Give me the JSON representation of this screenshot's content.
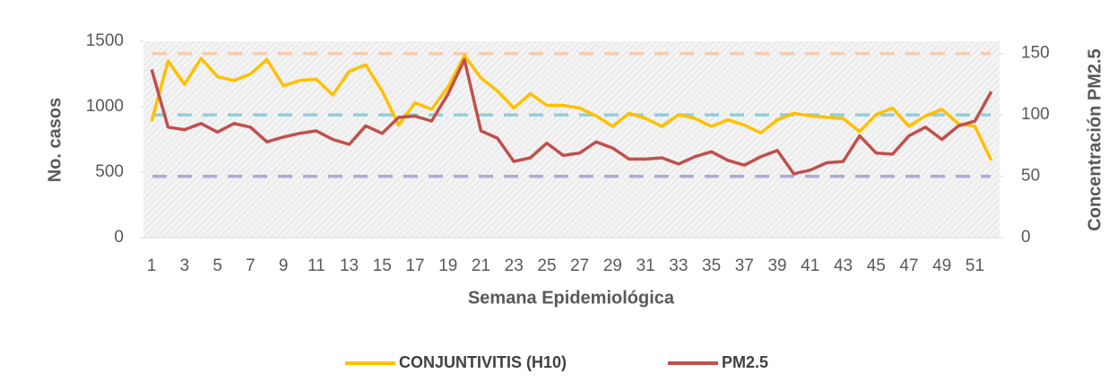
{
  "chart_data": {
    "type": "line",
    "x_label": "Semana Epidemiológica",
    "y_label": "No. casos",
    "y2_label": "Concentración PM2.5",
    "categories": [
      1,
      null,
      3,
      null,
      5,
      null,
      7,
      null,
      9,
      null,
      11,
      null,
      13,
      null,
      15,
      null,
      17,
      null,
      19,
      null,
      21,
      null,
      23,
      null,
      25,
      null,
      27,
      null,
      29,
      null,
      31,
      null,
      33,
      null,
      35,
      null,
      37,
      null,
      39,
      null,
      41,
      null,
      43,
      null,
      45,
      null,
      47,
      null,
      49,
      null,
      51,
      null
    ],
    "series": [
      {
        "name": "CONJUNTIVITIS (H10)",
        "color": "#ffc000",
        "values": [
          890,
          1350,
          1170,
          1370,
          1230,
          1200,
          1250,
          1360,
          1160,
          1200,
          1210,
          1090,
          1270,
          1320,
          1120,
          860,
          1030,
          980,
          1150,
          1390,
          1220,
          1120,
          990,
          1100,
          1010,
          1010,
          990,
          930,
          850,
          950,
          910,
          850,
          940,
          910,
          850,
          900,
          860,
          800,
          900,
          950,
          930,
          920,
          910,
          810,
          940,
          990,
          850,
          930,
          980,
          870,
          850,
          590
        ]
      },
      {
        "name": "PM2.5",
        "color": "#c0504d",
        "axis": "y2",
        "values": [
          137,
          90,
          88,
          93,
          86,
          93,
          90,
          78,
          82,
          85,
          87,
          80,
          76,
          91,
          85,
          98,
          99,
          95,
          117,
          145,
          87,
          81,
          62,
          65,
          77,
          67,
          69,
          78,
          73,
          64,
          64,
          65,
          60,
          66,
          70,
          63,
          59,
          66,
          71,
          52,
          55,
          61,
          62,
          83,
          69,
          68,
          83,
          90,
          80,
          91,
          95,
          119
        ]
      }
    ],
    "reference_lines": [
      {
        "value": 150,
        "color": "#f8cbad",
        "axis": "y2"
      },
      {
        "value": 100,
        "color": "#92cddc",
        "axis": "y2"
      },
      {
        "value": 50,
        "color": "#b4a7d6",
        "axis": "y2"
      }
    ],
    "ylim": [
      0,
      1500
    ],
    "yticks": [
      0,
      500,
      1000,
      1500
    ],
    "y2lim": [
      0,
      160
    ],
    "y2ticks": [
      0,
      50,
      100,
      150
    ],
    "legend": "bottom"
  }
}
